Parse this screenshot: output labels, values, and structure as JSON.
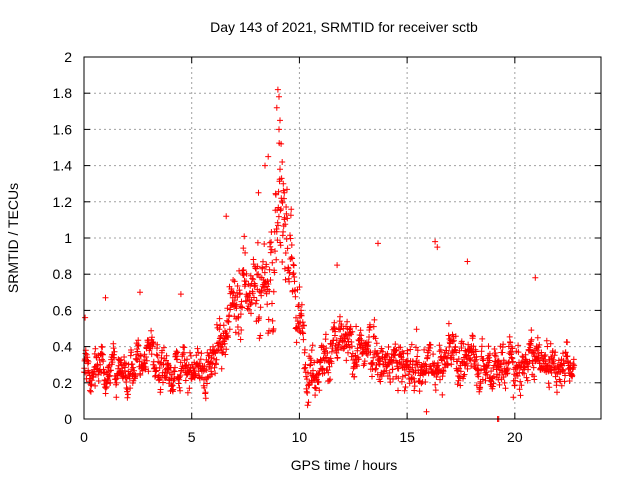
{
  "chart_data": {
    "type": "scatter",
    "title": "Day 143 of 2021, SRMTID for receiver sctb",
    "xlabel": "GPS time / hours",
    "ylabel": "SRMTID / TECUs",
    "xlim": [
      0,
      24
    ],
    "ylim": [
      0,
      2
    ],
    "xticks": [
      0,
      5,
      10,
      15,
      20
    ],
    "xtick_labels": [
      "0",
      "5",
      "10",
      "15",
      "20"
    ],
    "yticks": [
      0,
      0.2,
      0.4,
      0.6,
      0.8,
      1,
      1.2,
      1.4,
      1.6,
      1.8,
      2
    ],
    "ytick_labels": [
      "0",
      "0.2",
      "0.4",
      "0.6",
      "0.8",
      "1",
      "1.2",
      "1.4",
      "1.6",
      "1.8",
      "2"
    ],
    "grid": true,
    "marker": "+",
    "series_color": "#ff0000",
    "series": [
      {
        "name": "SRMTID",
        "x_start": 0,
        "x_end": 22.75,
        "n_points": 1638,
        "baseline": [
          [
            0,
            0.28
          ],
          [
            1,
            0.28
          ],
          [
            2,
            0.3
          ],
          [
            3,
            0.32
          ],
          [
            4,
            0.27
          ],
          [
            5,
            0.26
          ],
          [
            5.8,
            0.3
          ],
          [
            6.3,
            0.42
          ],
          [
            6.8,
            0.58
          ],
          [
            7.5,
            0.65
          ],
          [
            8,
            0.75
          ],
          [
            8.5,
            0.85
          ],
          [
            9,
            1.05
          ],
          [
            9.3,
            1.1
          ],
          [
            9.6,
            0.85
          ],
          [
            10,
            0.5
          ],
          [
            10.3,
            0.35
          ],
          [
            11,
            0.33
          ],
          [
            12,
            0.4
          ],
          [
            13,
            0.37
          ],
          [
            14,
            0.35
          ],
          [
            15,
            0.28
          ],
          [
            16,
            0.28
          ],
          [
            17,
            0.35
          ],
          [
            18,
            0.33
          ],
          [
            19,
            0.3
          ],
          [
            20,
            0.32
          ],
          [
            21,
            0.32
          ],
          [
            22,
            0.3
          ],
          [
            22.75,
            0.3
          ]
        ],
        "spread": [
          [
            0,
            0.1
          ],
          [
            5.8,
            0.1
          ],
          [
            6.5,
            0.15
          ],
          [
            8,
            0.25
          ],
          [
            9,
            0.35
          ],
          [
            9.6,
            0.3
          ],
          [
            10.2,
            0.15
          ],
          [
            12,
            0.12
          ],
          [
            16,
            0.12
          ],
          [
            22.75,
            0.1
          ]
        ],
        "outliers": [
          {
            "x": 9.0,
            "y": 1.82
          },
          {
            "x": 9.05,
            "y": 1.78
          },
          {
            "x": 8.95,
            "y": 1.72
          },
          {
            "x": 9.1,
            "y": 1.65
          },
          {
            "x": 9.05,
            "y": 1.6
          },
          {
            "x": 9.15,
            "y": 1.52
          },
          {
            "x": 9.2,
            "y": 1.42
          },
          {
            "x": 9.1,
            "y": 1.38
          },
          {
            "x": 8.55,
            "y": 1.45
          },
          {
            "x": 8.4,
            "y": 1.4
          },
          {
            "x": 9.25,
            "y": 1.3
          },
          {
            "x": 9.3,
            "y": 1.25
          },
          {
            "x": 8.1,
            "y": 1.25
          },
          {
            "x": 6.6,
            "y": 1.12
          },
          {
            "x": 13.65,
            "y": 0.97
          },
          {
            "x": 16.3,
            "y": 0.98
          },
          {
            "x": 16.4,
            "y": 0.95
          },
          {
            "x": 17.8,
            "y": 0.87
          },
          {
            "x": 11.75,
            "y": 0.85
          },
          {
            "x": 20.95,
            "y": 0.78
          },
          {
            "x": 2.6,
            "y": 0.7
          },
          {
            "x": 4.5,
            "y": 0.69
          },
          {
            "x": 1.0,
            "y": 0.67
          },
          {
            "x": 0.05,
            "y": 0.56
          },
          {
            "x": 15.9,
            "y": 0.04
          },
          {
            "x": 19.2,
            "y": 0.0
          },
          {
            "x": 19.25,
            "y": 0.0
          }
        ]
      }
    ]
  }
}
